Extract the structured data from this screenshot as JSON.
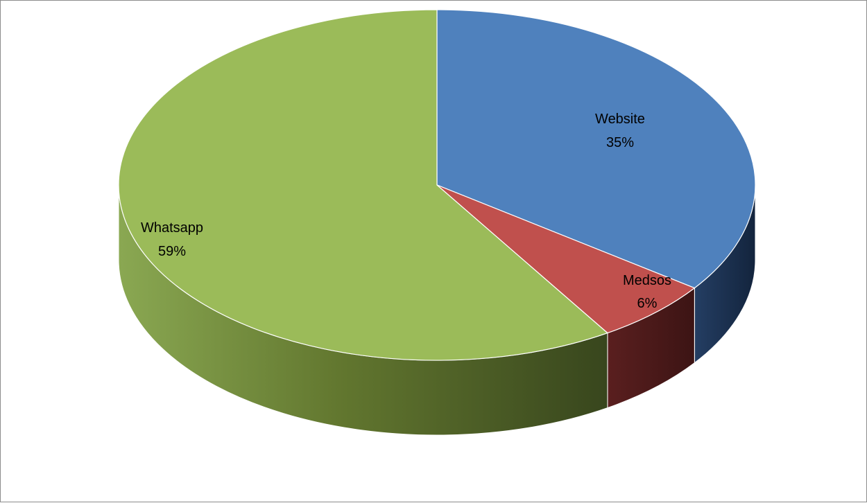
{
  "chart_data": {
    "type": "pie",
    "categories": [
      "Website",
      "Medsos",
      "Whatsapp"
    ],
    "values": [
      35,
      6,
      59
    ],
    "unit": "%",
    "colors": [
      "#4f81bd",
      "#c0504d",
      "#9bbb59"
    ],
    "side_colors": [
      "#1f3657",
      "#511d1c",
      "#4a5c2a"
    ],
    "three_d": true,
    "labels": [
      {
        "name": "Website",
        "pct": "35%"
      },
      {
        "name": "Medsos",
        "pct": "6%"
      },
      {
        "name": "Whatsapp",
        "pct": "59%"
      }
    ]
  }
}
